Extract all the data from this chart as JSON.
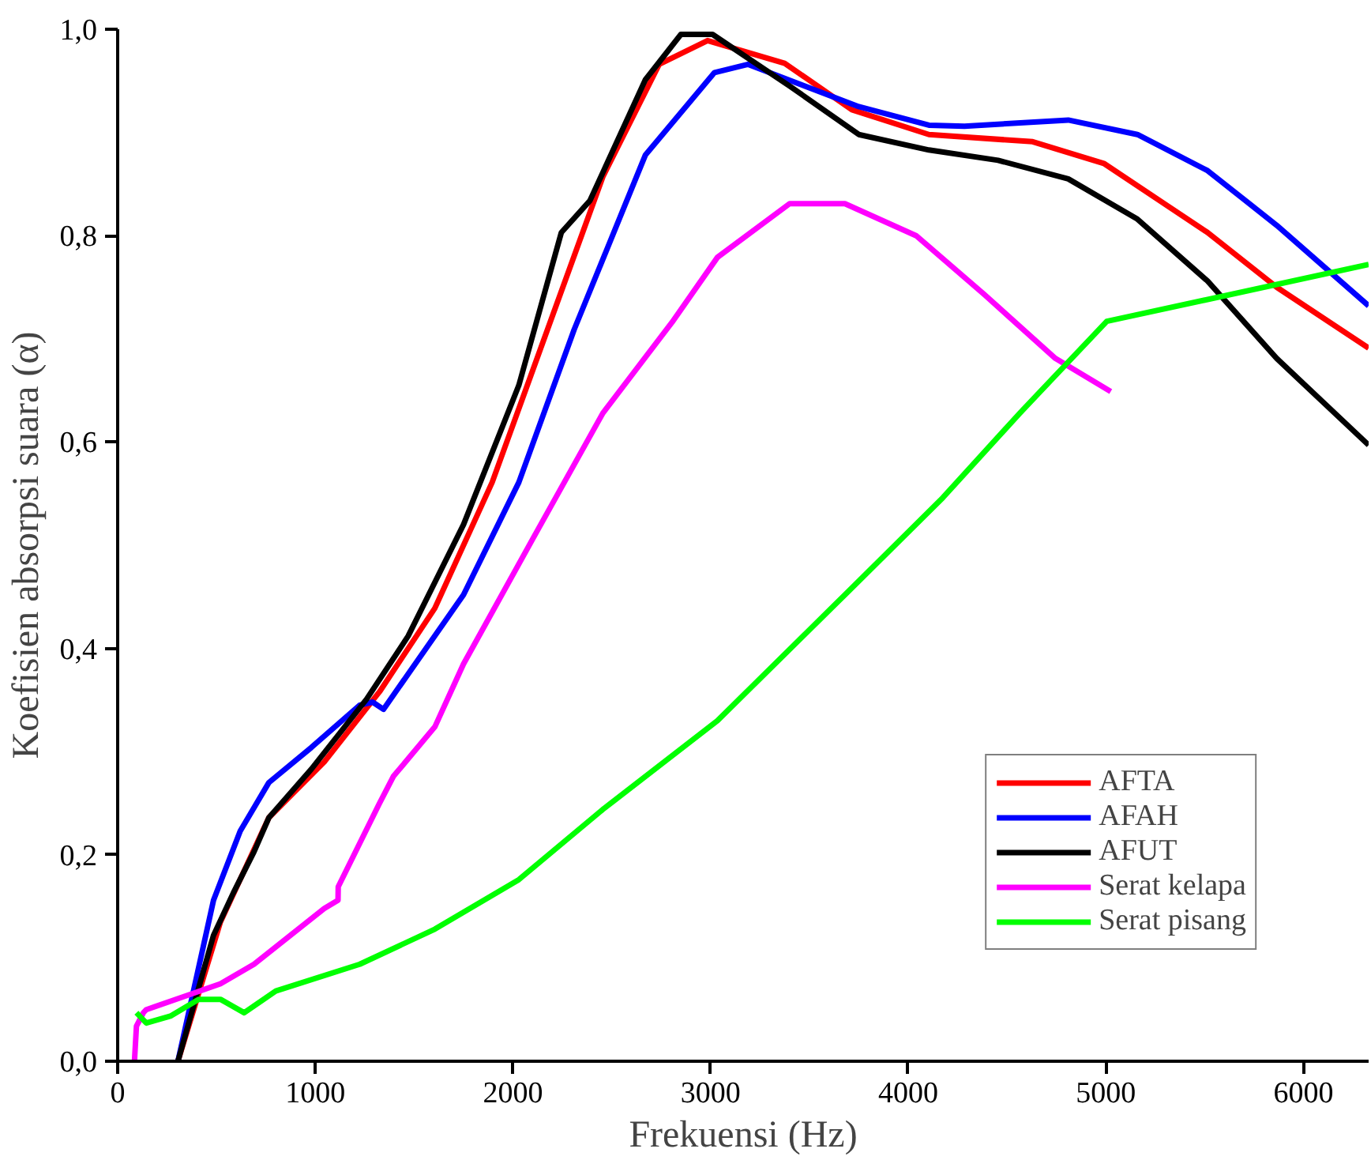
{
  "chart_data": {
    "type": "line",
    "xlabel": "Frekuensi (Hz)",
    "ylabel": "Koefisien absorpsi suara (α)",
    "xlim": [
      0,
      6330
    ],
    "ylim": [
      0,
      1.0
    ],
    "xticks": [
      0,
      1000,
      2000,
      3000,
      4000,
      5000,
      6000
    ],
    "yticks": [
      {
        "value": 0,
        "label": "0,0"
      },
      {
        "value": 0.2,
        "label": "0,2"
      },
      {
        "value": 0.4,
        "label": "0,4"
      },
      {
        "value": 0.6,
        "label": "0,6"
      },
      {
        "value": 0.8,
        "label": "0,8"
      },
      {
        "value": 1.0,
        "label": "1,0"
      }
    ],
    "grid": false,
    "legend": "bottom right",
    "line_style": "solid",
    "marker": "none",
    "series": [
      {
        "name": "AFTA",
        "color": "#ff0000",
        "x": [
          305,
          520,
          765,
          1045,
          1325,
          1605,
          1895,
          2175,
          2455,
          2740,
          2985,
          3375,
          3715,
          4105,
          4630,
          4990,
          5515,
          5865,
          6330
        ],
        "values": [
          0,
          0.135,
          0.236,
          0.29,
          0.358,
          0.439,
          0.561,
          0.709,
          0.857,
          0.966,
          0.989,
          0.967,
          0.922,
          0.898,
          0.891,
          0.87,
          0.803,
          0.75,
          0.691
        ]
      },
      {
        "name": "AFAH",
        "color": "#0000ff",
        "x": [
          305,
          485,
          620,
          765,
          980,
          1225,
          1290,
          1345,
          1750,
          2030,
          2310,
          2670,
          3020,
          3190,
          3750,
          4105,
          4285,
          4810,
          5160,
          5515,
          5865,
          6330
        ],
        "values": [
          0,
          0.156,
          0.223,
          0.27,
          0.304,
          0.345,
          0.348,
          0.341,
          0.452,
          0.561,
          0.709,
          0.878,
          0.958,
          0.966,
          0.925,
          0.907,
          0.906,
          0.912,
          0.898,
          0.863,
          0.81,
          0.732
        ]
      },
      {
        "name": "AFUT",
        "color": "#000000",
        "x": [
          305,
          485,
          585,
          690,
          765,
          980,
          1260,
          1470,
          1750,
          2030,
          2245,
          2390,
          2670,
          2850,
          3010,
          3400,
          3750,
          4105,
          4455,
          4810,
          5160,
          5515,
          5865,
          6330
        ],
        "values": [
          0,
          0.122,
          0.163,
          0.203,
          0.236,
          0.283,
          0.351,
          0.412,
          0.52,
          0.655,
          0.803,
          0.834,
          0.951,
          0.995,
          0.995,
          0.945,
          0.898,
          0.883,
          0.873,
          0.855,
          0.816,
          0.756,
          0.681,
          0.597
        ]
      },
      {
        "name": "Serat kelapa",
        "color": "#ff00ff",
        "x": [
          85,
          95,
          130,
          145,
          520,
          690,
          1045,
          1115,
          1116,
          1325,
          1395,
          1605,
          1750,
          2100,
          2455,
          2805,
          3035,
          3400,
          3680,
          4040,
          4385,
          4745,
          5025
        ],
        "values": [
          0,
          0.034,
          0.047,
          0.05,
          0.075,
          0.094,
          0.148,
          0.156,
          0.169,
          0.25,
          0.276,
          0.324,
          0.385,
          0.506,
          0.628,
          0.716,
          0.779,
          0.831,
          0.831,
          0.8,
          0.743,
          0.681,
          0.649
        ]
      },
      {
        "name": "Serat pisang",
        "color": "#00ff00",
        "x": [
          95,
          145,
          270,
          410,
          520,
          640,
          800,
          1225,
          1605,
          2030,
          2455,
          3035,
          3680,
          4175,
          4565,
          5005,
          6330
        ],
        "values": [
          0.047,
          0.037,
          0.044,
          0.06,
          0.06,
          0.047,
          0.068,
          0.094,
          0.128,
          0.176,
          0.244,
          0.33,
          0.452,
          0.546,
          0.628,
          0.717,
          0.772
        ]
      }
    ]
  }
}
